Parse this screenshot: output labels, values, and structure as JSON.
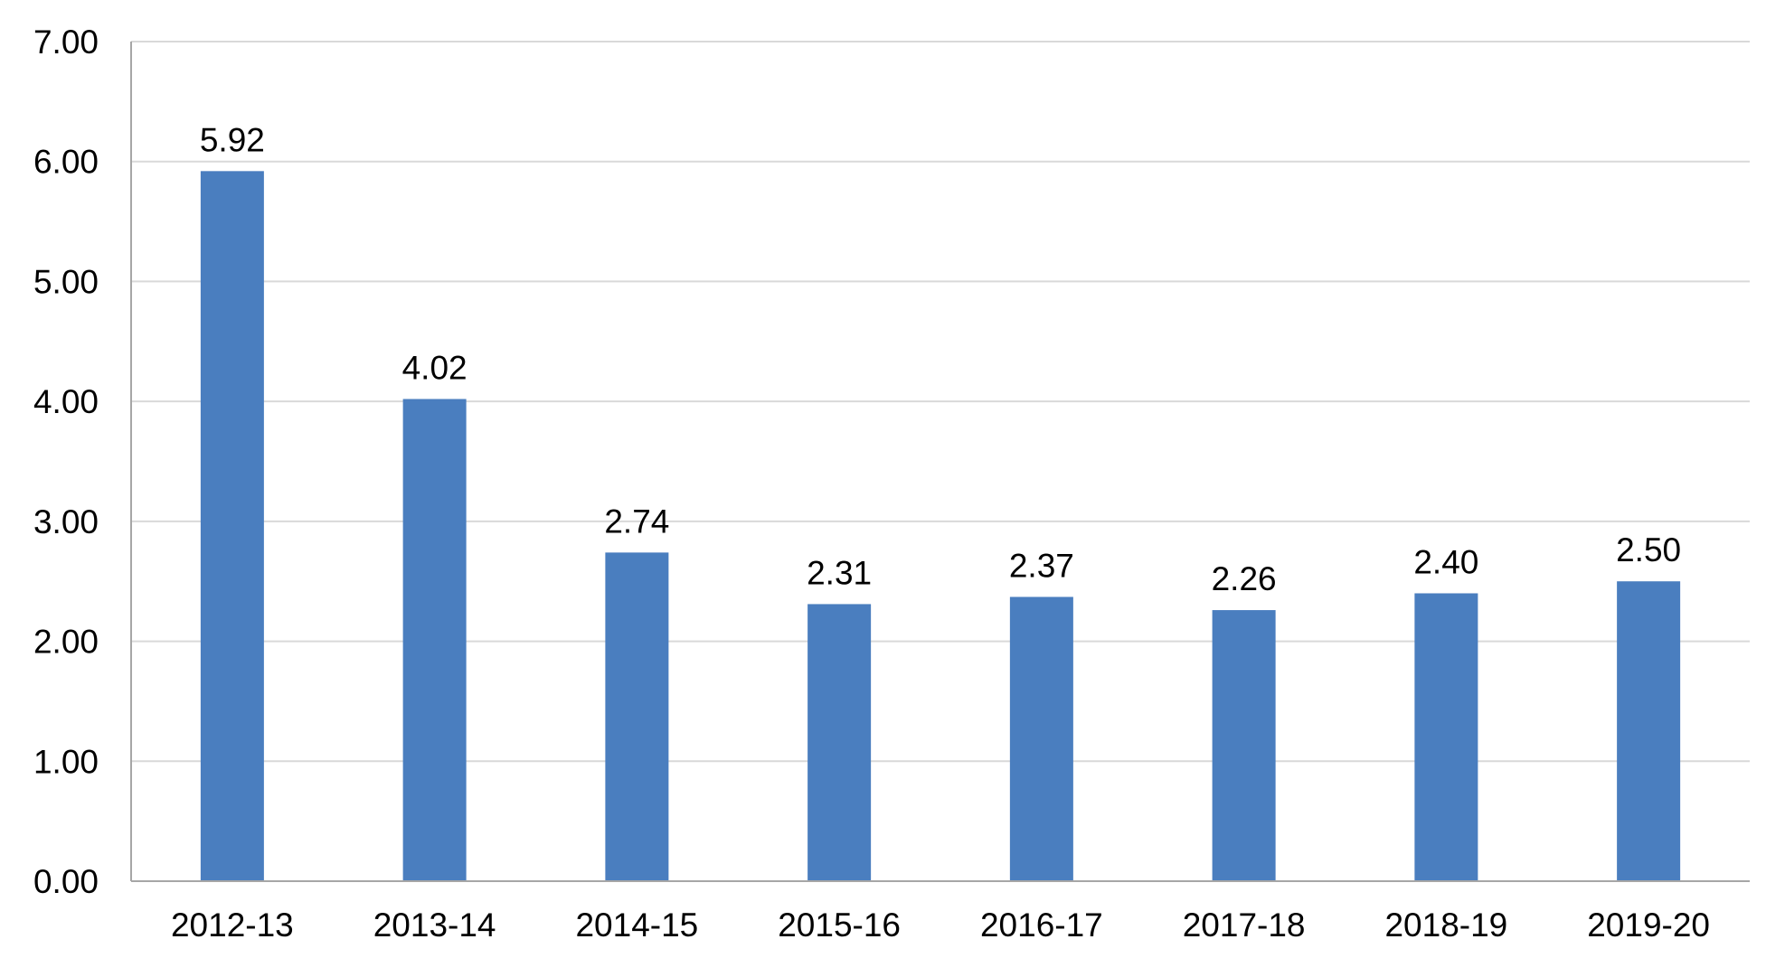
{
  "chart_data": {
    "type": "bar",
    "title": "",
    "xlabel": "",
    "ylabel": "",
    "categories": [
      "2012-13",
      "2013-14",
      "2014-15",
      "2015-16",
      "2016-17",
      "2017-18",
      "2018-19",
      "2019-20"
    ],
    "values": [
      5.92,
      4.02,
      2.74,
      2.31,
      2.37,
      2.26,
      2.4,
      2.5
    ],
    "value_labels": [
      "5.92",
      "4.02",
      "2.74",
      "2.31",
      "2.37",
      "2.26",
      "2.40",
      "2.50"
    ],
    "ylim": [
      0,
      7
    ],
    "yticks": [
      0,
      1,
      2,
      3,
      4,
      5,
      6,
      7
    ],
    "ytick_labels": [
      "0.00",
      "1.00",
      "2.00",
      "3.00",
      "4.00",
      "5.00",
      "6.00",
      "7.00"
    ],
    "grid": true,
    "legend": "none",
    "bar_color": "#4a7ebf",
    "gridline_color": "#d9d9d9",
    "axis_color": "#a6a6a6"
  }
}
